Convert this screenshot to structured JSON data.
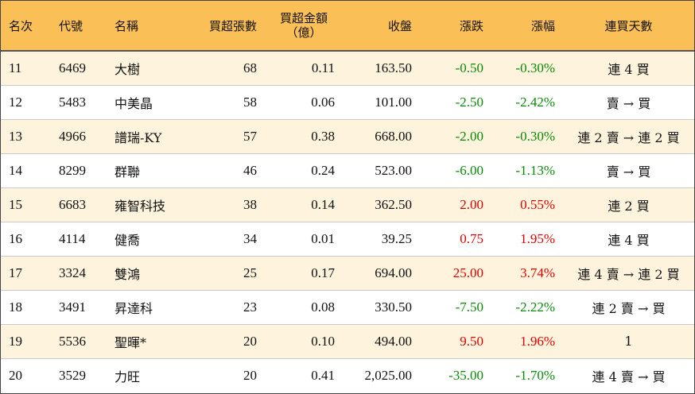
{
  "headers": {
    "rank": "名次",
    "code": "代號",
    "name": "名稱",
    "net_lots": "買超張數",
    "net_amount_line1": "買超金額",
    "net_amount_line2": "（億）",
    "close": "收盤",
    "change": "漲跌",
    "change_pct": "漲幅",
    "streak": "連買天數"
  },
  "colors": {
    "header_bg": "#fbbf57",
    "odd_row_bg": "#fef3dc",
    "up": "#e00000",
    "down": "#0a8a0a"
  },
  "rows": [
    {
      "rank": "11",
      "code": "6469",
      "name": "大樹",
      "net_lots": "68",
      "net_amount": "0.11",
      "close": "163.50",
      "change": "-0.50",
      "change_pct": "-0.30%",
      "streak": "連 4 買",
      "dir": "down"
    },
    {
      "rank": "12",
      "code": "5483",
      "name": "中美晶",
      "net_lots": "58",
      "net_amount": "0.06",
      "close": "101.00",
      "change": "-2.50",
      "change_pct": "-2.42%",
      "streak": "賣 → 買",
      "dir": "down"
    },
    {
      "rank": "13",
      "code": "4966",
      "name": "譜瑞-KY",
      "net_lots": "57",
      "net_amount": "0.38",
      "close": "668.00",
      "change": "-2.00",
      "change_pct": "-0.30%",
      "streak": "連 2 賣 → 連 2 買",
      "dir": "down"
    },
    {
      "rank": "14",
      "code": "8299",
      "name": "群聯",
      "net_lots": "46",
      "net_amount": "0.24",
      "close": "523.00",
      "change": "-6.00",
      "change_pct": "-1.13%",
      "streak": "賣 → 買",
      "dir": "down"
    },
    {
      "rank": "15",
      "code": "6683",
      "name": "雍智科技",
      "net_lots": "38",
      "net_amount": "0.14",
      "close": "362.50",
      "change": "2.00",
      "change_pct": "0.55%",
      "streak": "連 2 買",
      "dir": "up"
    },
    {
      "rank": "16",
      "code": "4114",
      "name": "健喬",
      "net_lots": "34",
      "net_amount": "0.01",
      "close": "39.25",
      "change": "0.75",
      "change_pct": "1.95%",
      "streak": "連 4 買",
      "dir": "up"
    },
    {
      "rank": "17",
      "code": "3324",
      "name": "雙鴻",
      "net_lots": "25",
      "net_amount": "0.17",
      "close": "694.00",
      "change": "25.00",
      "change_pct": "3.74%",
      "streak": "連 4 賣 → 連 2 買",
      "dir": "up"
    },
    {
      "rank": "18",
      "code": "3491",
      "name": "昇達科",
      "net_lots": "23",
      "net_amount": "0.08",
      "close": "330.50",
      "change": "-7.50",
      "change_pct": "-2.22%",
      "streak": "連 2 賣 → 買",
      "dir": "down"
    },
    {
      "rank": "19",
      "code": "5536",
      "name": "聖暉*",
      "net_lots": "20",
      "net_amount": "0.10",
      "close": "494.00",
      "change": "9.50",
      "change_pct": "1.96%",
      "streak": "1",
      "dir": "up"
    },
    {
      "rank": "20",
      "code": "3529",
      "name": "力旺",
      "net_lots": "20",
      "net_amount": "0.41",
      "close": "2,025.00",
      "change": "-35.00",
      "change_pct": "-1.70%",
      "streak": "連 4 賣 → 買",
      "dir": "down"
    }
  ]
}
